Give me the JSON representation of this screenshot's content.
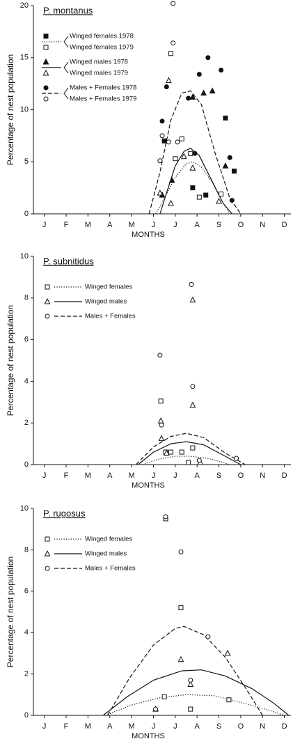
{
  "chart_data": [
    {
      "type": "scatter",
      "title": "P. montanus",
      "ylabel": "Percentage of nest population",
      "xlabel": "MONTHS",
      "xlim": [
        0,
        11.8
      ],
      "xticks": [
        {
          "value": 0.5,
          "label": "J"
        },
        {
          "value": 1.5,
          "label": "F"
        },
        {
          "value": 2.5,
          "label": "M"
        },
        {
          "value": 3.5,
          "label": "A"
        },
        {
          "value": 4.5,
          "label": "M"
        },
        {
          "value": 5.5,
          "label": "J"
        },
        {
          "value": 6.5,
          "label": "J"
        },
        {
          "value": 7.5,
          "label": "A"
        },
        {
          "value": 8.5,
          "label": "S"
        },
        {
          "value": 9.5,
          "label": "O"
        },
        {
          "value": 10.5,
          "label": "N"
        },
        {
          "value": 11.5,
          "label": "D"
        }
      ],
      "ylim": [
        0,
        20
      ],
      "yticks": [
        0,
        5,
        10,
        15,
        20
      ],
      "series": [
        {
          "name": "Winged females 1978",
          "marker": "square",
          "filled": true,
          "x": [
            6.0,
            7.3,
            7.9,
            8.8,
            9.2
          ],
          "values": [
            7.0,
            2.5,
            1.8,
            9.2,
            4.1
          ]
        },
        {
          "name": "Winged females 1979",
          "marker": "square",
          "filled": false,
          "x": [
            6.3,
            6.5,
            6.8,
            7.2,
            7.6,
            8.6
          ],
          "values": [
            15.4,
            5.3,
            7.2,
            5.8,
            1.6,
            1.9
          ]
        },
        {
          "name": "Winged males 1978",
          "marker": "triangle",
          "filled": true,
          "x": [
            5.9,
            6.35,
            7.3,
            7.8,
            8.2,
            8.8
          ],
          "values": [
            1.8,
            3.2,
            11.2,
            11.6,
            11.8,
            4.6
          ]
        },
        {
          "name": "Winged males 1979",
          "marker": "triangle",
          "filled": false,
          "x": [
            5.8,
            6.2,
            6.3,
            6.9,
            7.3,
            8.5
          ],
          "values": [
            2.0,
            12.8,
            1.0,
            5.5,
            4.4,
            1.2
          ]
        },
        {
          "name": "Males + Females 1978",
          "marker": "circle",
          "filled": true,
          "x": [
            5.9,
            6.1,
            7.1,
            7.4,
            7.6,
            8.0,
            8.6,
            9.0,
            9.1
          ],
          "values": [
            8.9,
            12.2,
            11.1,
            5.8,
            13.4,
            15.0,
            13.8,
            5.4,
            1.3
          ]
        },
        {
          "name": "Males + Females 1979",
          "marker": "circle",
          "filled": false,
          "x": [
            5.8,
            5.9,
            6.2,
            6.4,
            6.4,
            6.6
          ],
          "values": [
            5.1,
            7.5,
            6.9,
            20.2,
            16.4,
            6.9
          ]
        }
      ],
      "curves": [
        {
          "style": "dotted",
          "x": [
            5.6,
            6.0,
            6.5,
            7.0,
            7.3,
            7.7,
            8.2,
            8.7,
            9.0
          ],
          "values": [
            0,
            1.5,
            3.5,
            4.8,
            5.0,
            4.5,
            3.0,
            1.0,
            0
          ]
        },
        {
          "style": "solid",
          "x": [
            5.8,
            6.1,
            6.5,
            6.9,
            7.2,
            7.6,
            8.1,
            8.7,
            9.1
          ],
          "values": [
            0,
            2.0,
            4.6,
            6.0,
            6.3,
            5.6,
            3.5,
            1.0,
            0
          ]
        },
        {
          "style": "dashed",
          "x": [
            5.3,
            5.8,
            6.3,
            6.8,
            7.2,
            7.7,
            8.3,
            9.0,
            9.5
          ],
          "values": [
            0,
            4.0,
            9.0,
            11.6,
            11.8,
            10.5,
            6.0,
            1.5,
            0
          ]
        }
      ]
    },
    {
      "type": "scatter",
      "title": "P. subnitidus",
      "ylabel": "Percentage of nest population",
      "xlabel": "MONTHS",
      "xlim": [
        0,
        11.8
      ],
      "xticks": [
        {
          "value": 0.5,
          "label": "J"
        },
        {
          "value": 1.5,
          "label": "F"
        },
        {
          "value": 2.5,
          "label": "M"
        },
        {
          "value": 3.5,
          "label": "A"
        },
        {
          "value": 4.5,
          "label": "M"
        },
        {
          "value": 5.5,
          "label": "J"
        },
        {
          "value": 6.5,
          "label": "J"
        },
        {
          "value": 7.5,
          "label": "A"
        },
        {
          "value": 8.5,
          "label": "S"
        },
        {
          "value": 9.5,
          "label": "O"
        },
        {
          "value": 10.5,
          "label": "N"
        },
        {
          "value": 11.5,
          "label": "D"
        }
      ],
      "ylim": [
        0,
        10
      ],
      "yticks": [
        0,
        2,
        4,
        6,
        8,
        10
      ],
      "series": [
        {
          "name": "Winged females",
          "marker": "square",
          "filled": false,
          "x": [
            5.84,
            6.06,
            6.3,
            6.8,
            7.1,
            7.3
          ],
          "values": [
            3.05,
            0.6,
            0.6,
            0.6,
            0.1,
            0.8
          ]
        },
        {
          "name": "Winged males",
          "marker": "triangle",
          "filled": false,
          "x": [
            5.84,
            5.87,
            6.1,
            7.3,
            7.3,
            7.65
          ],
          "values": [
            2.1,
            1.25,
            0.55,
            7.9,
            2.85,
            0.1
          ]
        },
        {
          "name": "Males + Females",
          "marker": "circle",
          "filled": false,
          "x": [
            5.8,
            5.87,
            7.24,
            7.3,
            7.6,
            9.3
          ],
          "values": [
            5.25,
            1.9,
            8.65,
            3.75,
            0.2,
            0.3
          ]
        }
      ],
      "curves": [
        {
          "style": "dotted",
          "x": [
            5.0,
            5.7,
            6.5,
            7.2,
            8.0,
            8.7,
            9.0
          ],
          "values": [
            0,
            0.25,
            0.4,
            0.4,
            0.3,
            0.1,
            0
          ]
        },
        {
          "style": "solid",
          "x": [
            4.8,
            5.5,
            6.3,
            7.0,
            7.8,
            8.7,
            9.5
          ],
          "values": [
            0,
            0.6,
            1.0,
            1.1,
            0.95,
            0.45,
            0
          ]
        },
        {
          "style": "dashed",
          "x": [
            4.7,
            5.5,
            6.3,
            7.0,
            7.8,
            8.8,
            9.7
          ],
          "values": [
            0,
            0.85,
            1.35,
            1.5,
            1.3,
            0.55,
            0
          ]
        }
      ]
    },
    {
      "type": "scatter",
      "title": "P. rugosus",
      "ylabel": "Percentage of nest population",
      "xlabel": "MONTHS",
      "xlim": [
        0,
        11.8
      ],
      "xticks": [
        {
          "value": 0.5,
          "label": "J"
        },
        {
          "value": 1.5,
          "label": "F"
        },
        {
          "value": 2.5,
          "label": "M"
        },
        {
          "value": 3.5,
          "label": "A"
        },
        {
          "value": 4.5,
          "label": "M"
        },
        {
          "value": 5.5,
          "label": "J"
        },
        {
          "value": 6.5,
          "label": "J"
        },
        {
          "value": 7.5,
          "label": "A"
        },
        {
          "value": 8.5,
          "label": "S"
        },
        {
          "value": 9.5,
          "label": "O"
        },
        {
          "value": 10.5,
          "label": "N"
        },
        {
          "value": 11.5,
          "label": "D"
        }
      ],
      "ylim": [
        0,
        10
      ],
      "yticks": [
        0,
        2,
        4,
        6,
        8,
        10
      ],
      "series": [
        {
          "name": "Winged females",
          "marker": "square",
          "filled": false,
          "x": [
            6.06,
            6.76,
            6.0,
            7.2,
            8.96
          ],
          "values": [
            9.5,
            5.2,
            0.9,
            0.3,
            0.75
          ]
        },
        {
          "name": "Winged males",
          "marker": "triangle",
          "filled": false,
          "x": [
            6.76,
            7.2,
            8.9,
            5.6
          ],
          "values": [
            2.7,
            1.5,
            3.0,
            0.3
          ]
        },
        {
          "name": "Males + Females",
          "marker": "circle",
          "filled": false,
          "x": [
            6.06,
            6.76,
            7.2,
            8.0,
            5.6
          ],
          "values": [
            9.6,
            7.9,
            1.7,
            3.8,
            0.3
          ]
        }
      ],
      "curves": [
        {
          "style": "dotted",
          "x": [
            3.3,
            4.5,
            5.8,
            7.0,
            8.3,
            9.6,
            10.8,
            11.5
          ],
          "values": [
            0,
            0.5,
            0.85,
            1.0,
            0.95,
            0.6,
            0.25,
            0
          ]
        },
        {
          "style": "solid",
          "x": [
            3.2,
            4.3,
            5.5,
            6.8,
            7.7,
            8.8,
            10.0,
            11.0,
            11.7
          ],
          "values": [
            0,
            0.9,
            1.7,
            2.15,
            2.2,
            1.9,
            1.3,
            0.6,
            0
          ]
        },
        {
          "style": "dashed",
          "x": [
            3.4,
            4.4,
            5.5,
            6.5,
            6.9,
            7.8,
            8.8,
            9.8,
            10.5
          ],
          "values": [
            0,
            1.8,
            3.4,
            4.2,
            4.3,
            3.9,
            2.8,
            1.2,
            0
          ]
        }
      ]
    }
  ]
}
